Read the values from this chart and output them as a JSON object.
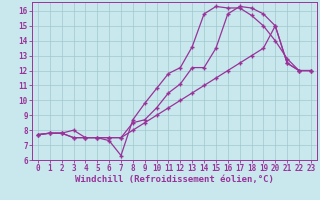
{
  "background_color": "#c8e8ee",
  "grid_color": "#a0c8cc",
  "line_color": "#993399",
  "marker": "+",
  "markersize": 3.5,
  "linewidth": 0.9,
  "xlim": [
    -0.5,
    23.5
  ],
  "ylim": [
    6.0,
    16.6
  ],
  "xticks": [
    0,
    1,
    2,
    3,
    4,
    5,
    6,
    7,
    8,
    9,
    10,
    11,
    12,
    13,
    14,
    15,
    16,
    17,
    18,
    19,
    20,
    21,
    22,
    23
  ],
  "yticks": [
    6,
    7,
    8,
    9,
    10,
    11,
    12,
    13,
    14,
    15,
    16
  ],
  "xlabel": "Windchill (Refroidissement éolien,°C)",
  "xlabel_fontsize": 6.5,
  "tick_fontsize": 5.5,
  "line1_x": [
    0,
    1,
    2,
    3,
    4,
    5,
    6,
    7,
    8,
    9,
    10,
    11,
    12,
    13,
    14,
    15,
    16,
    17,
    18,
    19,
    20,
    21,
    22,
    23
  ],
  "line1_y": [
    7.7,
    7.8,
    7.8,
    8.0,
    7.5,
    7.5,
    7.3,
    6.3,
    8.7,
    9.8,
    10.8,
    11.8,
    12.2,
    13.6,
    15.8,
    16.3,
    16.2,
    16.2,
    15.7,
    15.0,
    14.0,
    12.8,
    12.0,
    12.0
  ],
  "line2_x": [
    0,
    1,
    2,
    3,
    4,
    5,
    6,
    7,
    8,
    9,
    10,
    11,
    12,
    13,
    14,
    15,
    16,
    17,
    18,
    19,
    20,
    21,
    22,
    23
  ],
  "line2_y": [
    7.7,
    7.8,
    7.8,
    7.5,
    7.5,
    7.5,
    7.5,
    7.5,
    8.5,
    8.7,
    9.5,
    10.5,
    11.1,
    12.2,
    12.2,
    13.5,
    15.8,
    16.3,
    16.2,
    15.8,
    15.0,
    12.5,
    12.0,
    12.0
  ],
  "line3_x": [
    0,
    1,
    2,
    3,
    4,
    5,
    6,
    7,
    8,
    9,
    10,
    11,
    12,
    13,
    14,
    15,
    16,
    17,
    18,
    19,
    20,
    21,
    22,
    23
  ],
  "line3_y": [
    7.7,
    7.8,
    7.8,
    7.5,
    7.5,
    7.5,
    7.5,
    7.5,
    8.0,
    8.5,
    9.0,
    9.5,
    10.0,
    10.5,
    11.0,
    11.5,
    12.0,
    12.5,
    13.0,
    13.5,
    15.0,
    12.5,
    12.0,
    12.0
  ]
}
